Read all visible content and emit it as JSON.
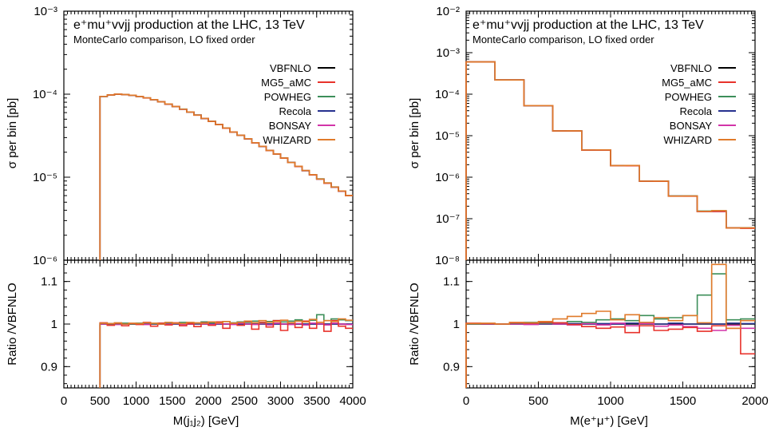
{
  "chart_data": [
    {
      "type": "line",
      "title": "e⁺mu⁺vvjj production at the LHC, 13 TeV",
      "subtitle": "MonteCarlo comparison, LO fixed order",
      "main": {
        "ylabel": "σ per bin [pb]",
        "yscale": "log",
        "ylim": [
          1e-06,
          0.001
        ],
        "yticks": [
          {
            "v": 0.001,
            "label": "10⁻³"
          },
          {
            "v": 0.0001,
            "label": "10⁻⁴"
          },
          {
            "v": 1e-05,
            "label": "10⁻⁵"
          },
          {
            "v": 1e-06,
            "label": "10⁻⁶"
          }
        ]
      },
      "ratio": {
        "ylabel": "Ratio /VBFNLO",
        "ylim": [
          0.85,
          1.15
        ],
        "yticks": [
          {
            "v": 1.1,
            "label": "1.1"
          },
          {
            "v": 1.0,
            "label": "1"
          },
          {
            "v": 0.9,
            "label": "0.9"
          }
        ]
      },
      "xlabel": "M(j₁j₂) [GeV]",
      "xlim": [
        0,
        4000
      ],
      "xticks": [
        {
          "v": 0,
          "label": "0"
        },
        {
          "v": 500,
          "label": "500"
        },
        {
          "v": 1000,
          "label": "1000"
        },
        {
          "v": 1500,
          "label": "1500"
        },
        {
          "v": 2000,
          "label": "2000"
        },
        {
          "v": 2500,
          "label": "2500"
        },
        {
          "v": 3000,
          "label": "3000"
        },
        {
          "v": 3500,
          "label": "3500"
        },
        {
          "v": 4000,
          "label": "4000"
        }
      ],
      "bins": {
        "start": 500,
        "width": 100
      },
      "values": [
        9.4e-05,
        9.8e-05,
        0.0001,
        9.9e-05,
        9.7e-05,
        9.4e-05,
        9e-05,
        8.6e-05,
        8.1e-05,
        7.6e-05,
        7.1e-05,
        6.6e-05,
        6.1e-05,
        5.6e-05,
        5.1e-05,
        4.7e-05,
        4.3e-05,
        3.9e-05,
        3.5e-05,
        3.2e-05,
        2.9e-05,
        2.6e-05,
        2.35e-05,
        2.1e-05,
        1.9e-05,
        1.7e-05,
        1.5e-05,
        1.35e-05,
        1.2e-05,
        1.07e-05,
        9.5e-06,
        8.5e-06,
        7.6e-06,
        6.8e-06,
        6e-06
      ],
      "series": [
        {
          "name": "VBFNLO",
          "color": "#000000",
          "ratio": [
            1,
            1,
            1,
            1,
            1,
            1,
            1,
            1,
            1,
            1,
            1,
            1,
            1,
            1,
            1,
            1,
            1,
            1,
            1,
            1,
            1,
            1,
            1,
            1,
            1,
            1,
            1,
            1,
            1,
            1,
            1,
            1,
            1,
            1,
            1
          ]
        },
        {
          "name": "MG5_aMC",
          "color": "#e8322b",
          "ratio": [
            1.003,
            0.997,
            1.002,
            0.996,
            1.001,
            0.999,
            1.004,
            0.995,
            1.002,
            0.998,
            1.003,
            0.996,
            1.001,
            0.994,
            1.003,
            0.997,
            1.005,
            0.99,
            1.002,
            0.997,
            1.006,
            0.988,
            1.004,
            0.993,
            1.008,
            0.985,
            1.003,
            0.992,
            1.007,
            0.99,
            1.004,
            0.983,
            1.008,
            0.995,
            0.99
          ]
        },
        {
          "name": "POWHEG",
          "color": "#3d8f5a",
          "ratio": [
            1.002,
            1.001,
            1.001,
            1.002,
            1.0,
            1.002,
            1.003,
            1.001,
            1.002,
            1.003,
            1.002,
            1.004,
            1.003,
            1.002,
            1.005,
            1.003,
            1.004,
            1.006,
            1.003,
            1.005,
            1.004,
            1.007,
            1.003,
            1.006,
            1.008,
            1.005,
            1.007,
            1.01,
            1.006,
            1.009,
            1.022,
            1.008,
            1.012,
            1.01,
            1.008
          ]
        },
        {
          "name": "Recola",
          "color": "#26318f",
          "ratio": [
            1.0,
            1.0,
            1.0,
            1.0,
            1.0,
            1.0,
            1.0,
            1.0,
            1.0,
            1.0,
            1.0,
            1.0,
            1.0,
            1.0,
            1.0,
            1.0,
            1.0,
            1.0,
            1.0,
            1.0,
            1.0,
            1.0,
            1.0,
            1.0,
            1.0,
            1.0,
            1.0,
            1.0,
            1.0,
            1.0,
            1.0,
            1.0,
            1.0,
            1.0,
            1.0
          ]
        },
        {
          "name": "BONSAY",
          "color": "#d234a8",
          "ratio": [
            1.0,
            1.001,
            0.999,
            1.0,
            1.001,
            1.0,
            0.999,
            1.001,
            1.0,
            1.0,
            1.001,
            0.999,
            1.0,
            1.001,
            1.0,
            0.999,
            1.001,
            1.0,
            0.999,
            1.002,
            1.0,
            0.999,
            1.001,
            0.998,
            1.002,
            1.0,
            0.999,
            1.001,
            0.998,
            1.002,
            1.0,
            0.998,
            1.002,
            1.0,
            0.999
          ]
        },
        {
          "name": "WHIZARD",
          "color": "#e07a2a",
          "ratio": [
            1.002,
            1.001,
            1.003,
            1.0,
            1.002,
            1.001,
            1.003,
            1.002,
            1.0,
            1.004,
            1.002,
            1.001,
            1.004,
            1.003,
            1.002,
            1.005,
            1.003,
            1.006,
            1.002,
            1.004,
            1.007,
            1.003,
            1.008,
            1.004,
            1.006,
            1.009,
            1.003,
            1.007,
            1.005,
            1.011,
            1.004,
            1.008,
            1.006,
            1.012,
            1.009
          ]
        }
      ]
    },
    {
      "type": "line",
      "title": "e⁺mu⁺vvjj production at the LHC, 13 TeV",
      "subtitle": "MonteCarlo comparison, LO fixed order",
      "main": {
        "ylabel": "σ per bin [pb]",
        "yscale": "log",
        "ylim": [
          1e-08,
          0.01
        ],
        "yticks": [
          {
            "v": 0.01,
            "label": "10⁻²"
          },
          {
            "v": 0.001,
            "label": "10⁻³"
          },
          {
            "v": 0.0001,
            "label": "10⁻⁴"
          },
          {
            "v": 1e-05,
            "label": "10⁻⁵"
          },
          {
            "v": 1e-06,
            "label": "10⁻⁶"
          },
          {
            "v": 1e-07,
            "label": "10⁻⁷"
          },
          {
            "v": 1e-08,
            "label": "10⁻⁸"
          }
        ]
      },
      "ratio": {
        "ylabel": "Ratio /VBFNLO",
        "ylim": [
          0.85,
          1.15
        ],
        "yticks": [
          {
            "v": 1.1,
            "label": "1.1"
          },
          {
            "v": 1.0,
            "label": "1"
          },
          {
            "v": 0.9,
            "label": "0.9"
          }
        ]
      },
      "xlabel": "M(e⁺μ⁺) [GeV]",
      "xlim": [
        0,
        2000
      ],
      "xticks": [
        {
          "v": 0,
          "label": "0"
        },
        {
          "v": 500,
          "label": "500"
        },
        {
          "v": 1000,
          "label": "1000"
        },
        {
          "v": 1500,
          "label": "1500"
        },
        {
          "v": 2000,
          "label": "2000"
        }
      ],
      "bins": {
        "start": 0,
        "width": 100
      },
      "values": [
        0.0006,
        0.0006,
        0.00022,
        0.00022,
        5.3e-05,
        5.3e-05,
        1.3e-05,
        1.3e-05,
        4.5e-06,
        4.5e-06,
        1.9e-06,
        1.9e-06,
        8e-07,
        8e-07,
        3.5e-07,
        3.5e-07,
        1.5e-07,
        1.5e-07,
        6e-08,
        6e-08
      ],
      "series": [
        {
          "name": "VBFNLO",
          "color": "#000000",
          "ratio": [
            1,
            1,
            1,
            1,
            1,
            1,
            1,
            1,
            1,
            1,
            1,
            1,
            1,
            1,
            1,
            1,
            1,
            1,
            1,
            1
          ]
        },
        {
          "name": "MG5_aMC",
          "color": "#e8322b",
          "ratio": [
            1.002,
            1.001,
            1.0,
            1.003,
            1.002,
            1.004,
            1.003,
            0.999,
            0.994,
            0.99,
            0.993,
            0.98,
            0.996,
            0.985,
            0.988,
            0.992,
            0.983,
            0.996,
            0.99,
            0.93
          ]
        },
        {
          "name": "POWHEG",
          "color": "#3d8f5a",
          "ratio": [
            1.0,
            1.001,
            1.0,
            1.002,
            1.004,
            1.002,
            1.003,
            1.006,
            1.004,
            1.01,
            1.012,
            1.008,
            1.02,
            1.012,
            1.015,
            1.02,
            1.068,
            1.118,
            1.01,
            1.012
          ]
        },
        {
          "name": "Recola",
          "color": "#26318f",
          "ratio": [
            1.0,
            1.0,
            1.0,
            1.0,
            1.0,
            1.0,
            1.0,
            1.001,
            1.0,
            1.001,
            1.0,
            1.002,
            1.001,
            1.0,
            1.002,
            1.0,
            1.001,
            1.0,
            1.002,
            1.001
          ]
        },
        {
          "name": "BONSAY",
          "color": "#d234a8",
          "ratio": [
            1.0,
            1.0,
            1.0,
            1.0,
            0.999,
            1.001,
            1.0,
            0.998,
            1.001,
            0.998,
            1.002,
            0.996,
            1.001,
            0.995,
            0.998,
            0.994,
            0.99,
            0.985,
            0.997,
            0.99
          ]
        },
        {
          "name": "WHIZARD",
          "color": "#e07a2a",
          "ratio": [
            1.001,
            1.002,
            1.0,
            1.004,
            1.003,
            1.006,
            1.012,
            1.018,
            1.025,
            1.03,
            1.01,
            1.022,
            1.004,
            1.015,
            1.008,
            1.02,
            1.003,
            1.14,
            0.99,
            1.008
          ]
        }
      ]
    }
  ]
}
